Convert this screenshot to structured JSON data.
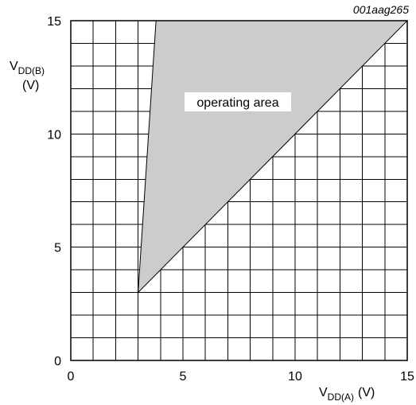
{
  "chart_data": {
    "type": "area",
    "reference_code": "001aag265",
    "xlabel": {
      "main": "V",
      "sub": "DD(A)",
      "unit": "(V)"
    },
    "ylabel": {
      "main": "V",
      "sub": "DD(B)",
      "unit": "(V)"
    },
    "xlim": [
      0,
      15
    ],
    "ylim": [
      0,
      15
    ],
    "xticks": [
      0,
      5,
      10,
      15
    ],
    "yticks": [
      0,
      5,
      10,
      15
    ],
    "grid": true,
    "grid_step": 1,
    "area": {
      "label": "operating area",
      "color": "#cccccc",
      "vertices": [
        {
          "x": 3,
          "y": 3
        },
        {
          "x": 3.8,
          "y": 15
        },
        {
          "x": 15,
          "y": 15
        }
      ]
    }
  }
}
